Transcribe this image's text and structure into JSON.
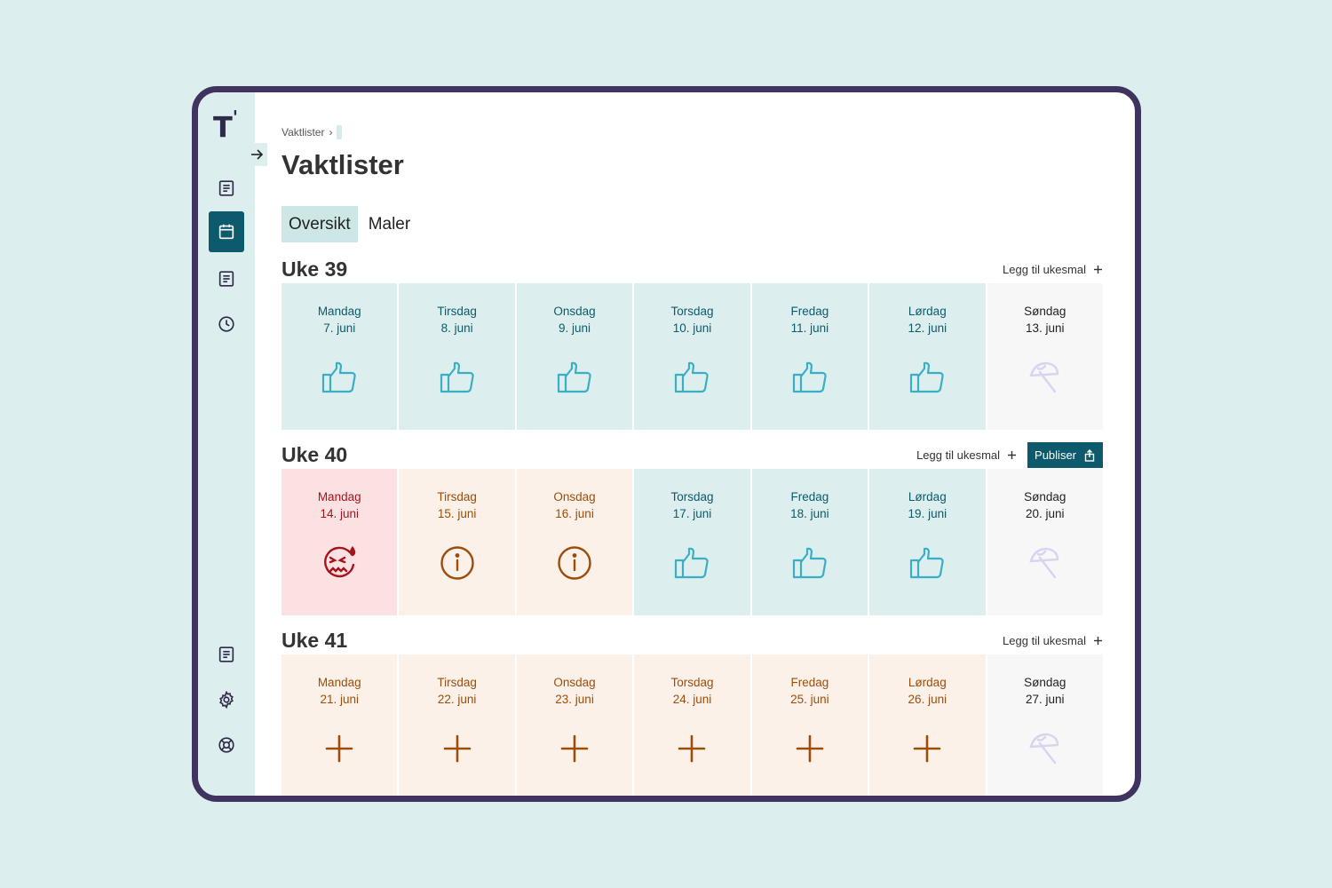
{
  "app": {
    "logo_text": "T",
    "logo_mark": "'"
  },
  "colors": {
    "accent": "#0c5a6b",
    "frame": "#3f345f",
    "ok_bg": "#dceeee",
    "ok_icon": "#3aaec4",
    "warn_bg": "#fcf1e8",
    "warn_icon": "#9c4d0a",
    "bad_bg": "#fce1e3",
    "bad_icon": "#a4141d",
    "off_icon": "#d9d2f0"
  },
  "sidebar": {
    "items": [
      {
        "icon": "document-icon",
        "active": false
      },
      {
        "icon": "calendar-icon",
        "active": true
      },
      {
        "icon": "document-icon",
        "active": false
      },
      {
        "icon": "clock-icon",
        "active": false
      }
    ],
    "bottom_items": [
      {
        "icon": "document-icon"
      },
      {
        "icon": "gear-icon"
      },
      {
        "icon": "lifebuoy-icon"
      }
    ]
  },
  "breadcrumb": {
    "item": "Vaktlister",
    "separator": "›"
  },
  "page": {
    "title": "Vaktlister"
  },
  "tabs": [
    {
      "label": "Oversikt",
      "active": true
    },
    {
      "label": "Maler",
      "active": false
    }
  ],
  "weeks": [
    {
      "title": "Uke 39",
      "add_template_label": "Legg til ukesmal",
      "publish_label": "",
      "days": [
        {
          "name": "Mandag",
          "date": "7. juni",
          "status": "ok",
          "icon": "thumbs-up-icon"
        },
        {
          "name": "Tirsdag",
          "date": "8. juni",
          "status": "ok",
          "icon": "thumbs-up-icon"
        },
        {
          "name": "Onsdag",
          "date": "9. juni",
          "status": "ok",
          "icon": "thumbs-up-icon"
        },
        {
          "name": "Torsdag",
          "date": "10. juni",
          "status": "ok",
          "icon": "thumbs-up-icon"
        },
        {
          "name": "Fredag",
          "date": "11. juni",
          "status": "ok",
          "icon": "thumbs-up-icon"
        },
        {
          "name": "Lørdag",
          "date": "12. juni",
          "status": "ok",
          "icon": "thumbs-up-icon"
        },
        {
          "name": "Søndag",
          "date": "13. juni",
          "status": "off",
          "icon": "umbrella-icon"
        }
      ]
    },
    {
      "title": "Uke 40",
      "add_template_label": "Legg til ukesmal",
      "publish_label": "Publiser",
      "days": [
        {
          "name": "Mandag",
          "date": "14. juni",
          "status": "bad",
          "icon": "stressed-face-icon"
        },
        {
          "name": "Tirsdag",
          "date": "15. juni",
          "status": "warn",
          "icon": "info-icon"
        },
        {
          "name": "Onsdag",
          "date": "16. juni",
          "status": "warn",
          "icon": "info-icon"
        },
        {
          "name": "Torsdag",
          "date": "17. juni",
          "status": "ok",
          "icon": "thumbs-up-icon"
        },
        {
          "name": "Fredag",
          "date": "18. juni",
          "status": "ok",
          "icon": "thumbs-up-icon"
        },
        {
          "name": "Lørdag",
          "date": "19. juni",
          "status": "ok",
          "icon": "thumbs-up-icon"
        },
        {
          "name": "Søndag",
          "date": "20. juni",
          "status": "off",
          "icon": "umbrella-icon"
        }
      ]
    },
    {
      "title": "Uke 41",
      "add_template_label": "Legg til ukesmal",
      "publish_label": "",
      "days": [
        {
          "name": "Mandag",
          "date": "21. juni",
          "status": "warn",
          "icon": "plus-icon"
        },
        {
          "name": "Tirsdag",
          "date": "22. juni",
          "status": "warn",
          "icon": "plus-icon"
        },
        {
          "name": "Onsdag",
          "date": "23. juni",
          "status": "warn",
          "icon": "plus-icon"
        },
        {
          "name": "Torsdag",
          "date": "24. juni",
          "status": "warn",
          "icon": "plus-icon"
        },
        {
          "name": "Fredag",
          "date": "25. juni",
          "status": "warn",
          "icon": "plus-icon"
        },
        {
          "name": "Lørdag",
          "date": "26. juni",
          "status": "warn",
          "icon": "plus-icon"
        },
        {
          "name": "Søndag",
          "date": "27. juni",
          "status": "off",
          "icon": "umbrella-icon"
        }
      ]
    }
  ]
}
